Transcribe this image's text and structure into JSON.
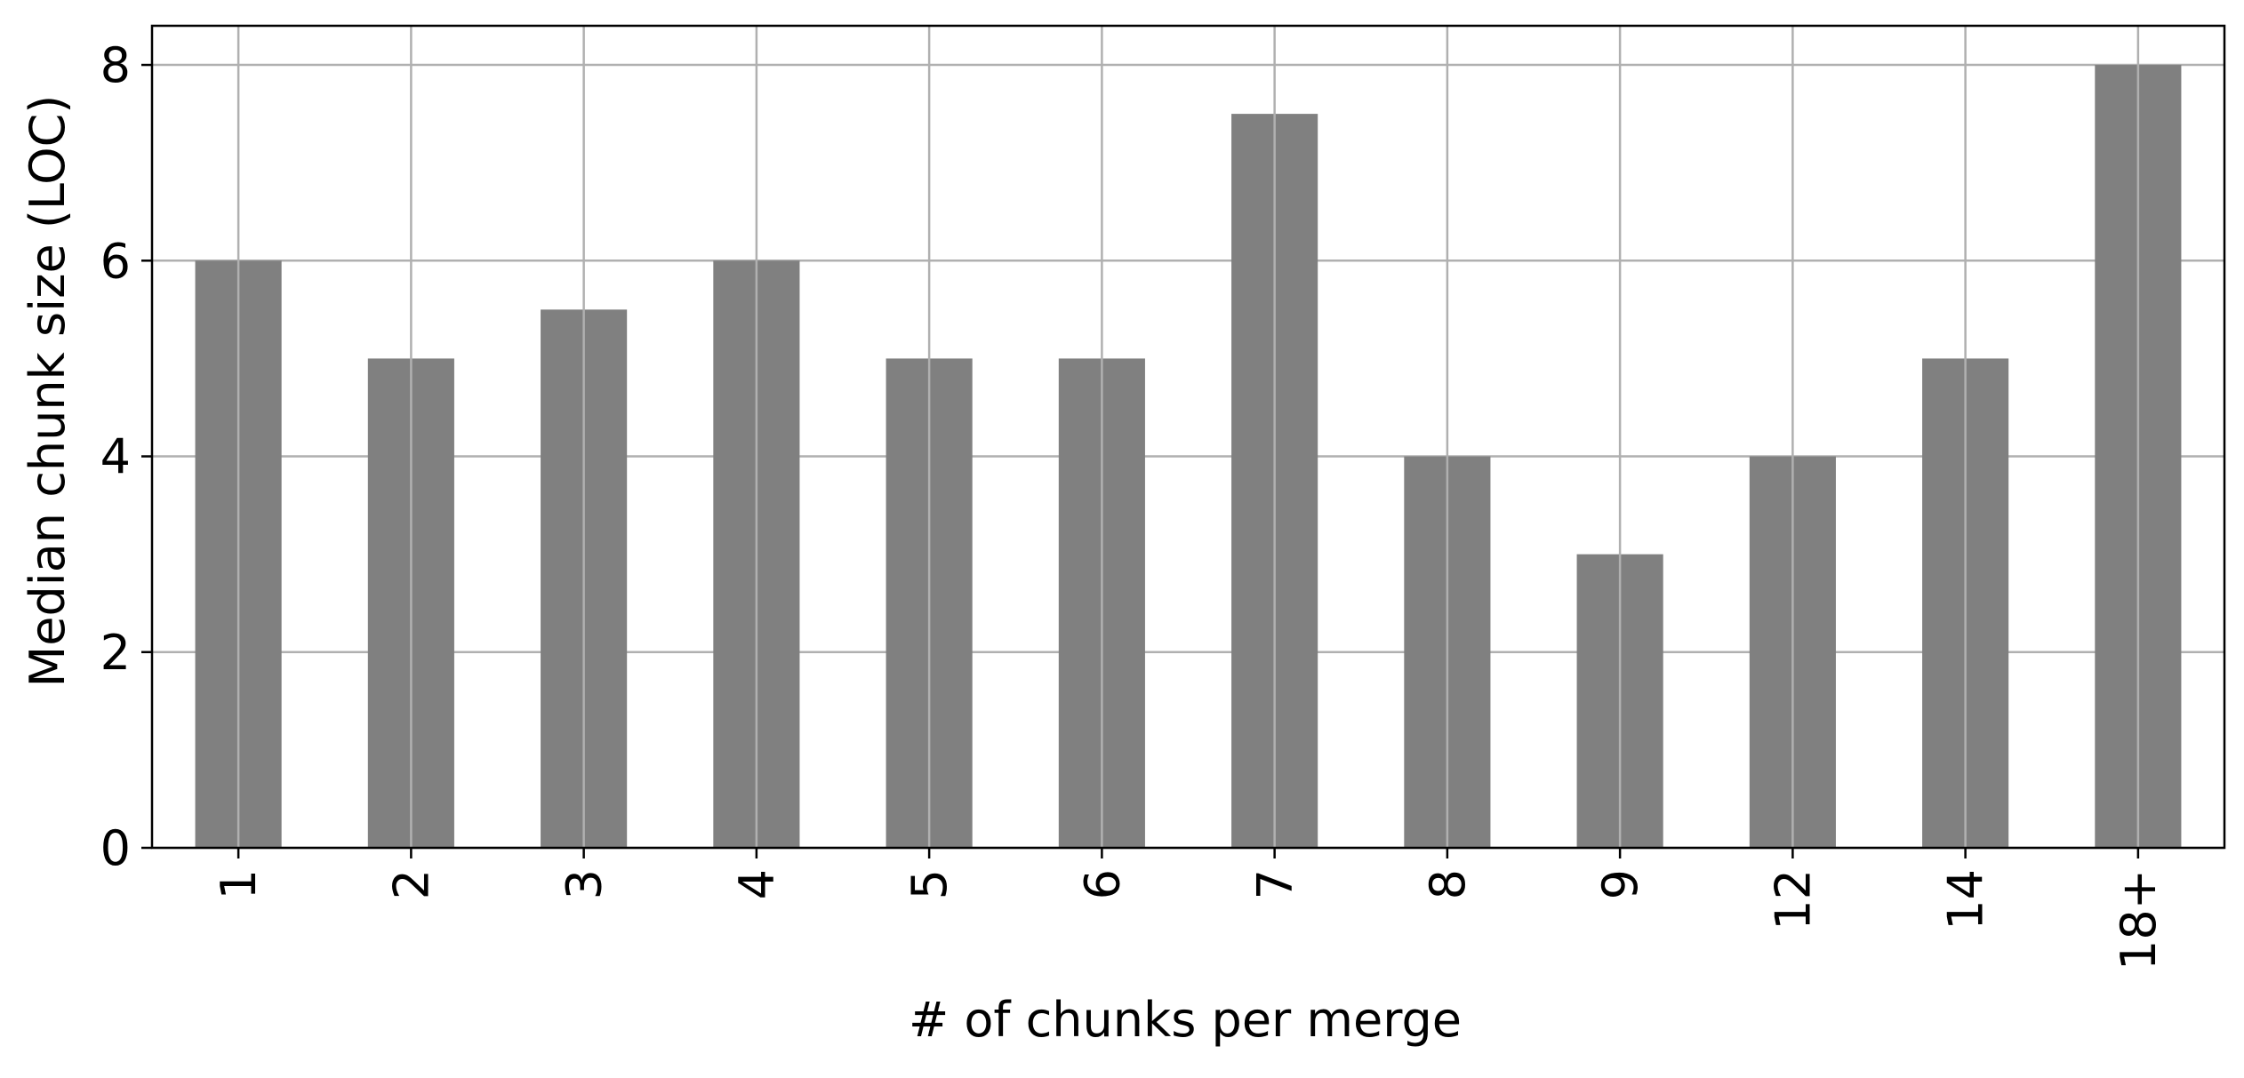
{
  "chart_data": {
    "type": "bar",
    "title": "",
    "xlabel": "# of chunks per merge",
    "ylabel": "Median chunk size (LOC)",
    "categories": [
      "1",
      "2",
      "3",
      "4",
      "5",
      "6",
      "7",
      "8",
      "9",
      "12",
      "14",
      "18+"
    ],
    "values": [
      6,
      5,
      5.5,
      6,
      5,
      5,
      7.5,
      4,
      3,
      4,
      5,
      8
    ],
    "ylim": [
      0,
      8.4
    ],
    "yticks": [
      0,
      2,
      4,
      6,
      8
    ],
    "grid": true,
    "legend": "none",
    "xtick_rotation": "vertical",
    "colors": {
      "bar": "#808080",
      "grid": "#b0b0b0",
      "axes": "#000000",
      "background": "#ffffff"
    }
  }
}
